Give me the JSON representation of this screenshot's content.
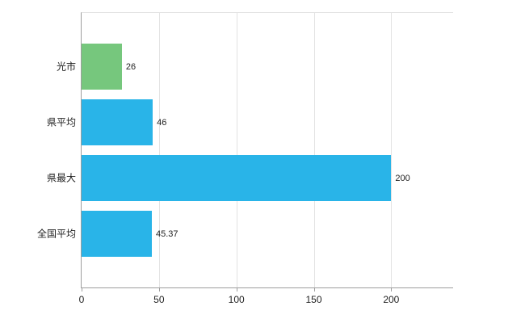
{
  "chart_data": {
    "type": "bar",
    "orientation": "horizontal",
    "title": "",
    "xlabel": "",
    "ylabel": "",
    "categories": [
      "光市",
      "県平均",
      "県最大",
      "全国平均"
    ],
    "values": [
      26,
      46,
      200,
      45.37
    ],
    "value_labels": [
      "26",
      "46",
      "200",
      "45.37"
    ],
    "bar_colors": [
      "#76c77d",
      "#29b4e8",
      "#29b4e8",
      "#29b4e8"
    ],
    "xticks": [
      0,
      50,
      100,
      150,
      200
    ],
    "xlim": [
      0,
      240
    ],
    "grid": true,
    "legend": false,
    "background": "#ffffff"
  }
}
